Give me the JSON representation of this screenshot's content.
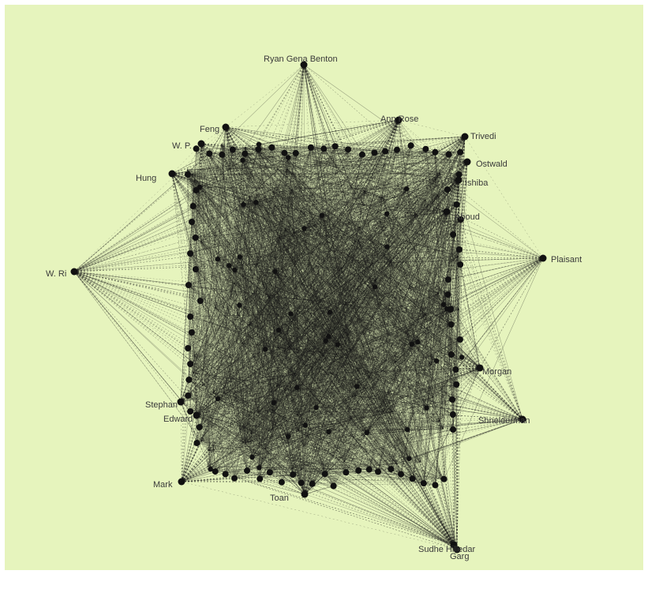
{
  "colors": {
    "background": "#e6f4bd",
    "node": "#111111",
    "edge": "#1a1a1a"
  },
  "hubs": [
    {
      "id": "benton",
      "label": "Ryan Gena Benton"
    },
    {
      "id": "rose",
      "label": "Ann Rose"
    },
    {
      "id": "trivedi",
      "label": "Trivedi"
    },
    {
      "id": "ostwald",
      "label": "Ostwald"
    },
    {
      "id": "plaisant",
      "label": "Plaisant"
    },
    {
      "id": "shneiderman",
      "label": "Shneiderman"
    },
    {
      "id": "hilledar",
      "label": "Sudhe Hilledar"
    },
    {
      "id": "garg",
      "label": "Garg"
    },
    {
      "id": "mark",
      "label": "Mark"
    },
    {
      "id": "stephan",
      "label": "Stephan"
    },
    {
      "id": "edward",
      "label": "Edward"
    },
    {
      "id": "wri",
      "label": "W. Ri"
    },
    {
      "id": "hung",
      "label": "Hung"
    },
    {
      "id": "wp",
      "label": "W. P."
    },
    {
      "id": "feng",
      "label": "Feng"
    },
    {
      "id": "aboud",
      "label": "Aboud"
    },
    {
      "id": "morgan",
      "label": "Morgan"
    },
    {
      "id": "toan",
      "label": "Toan"
    },
    {
      "id": "ishiba",
      "label": "Ishiba"
    }
  ]
}
